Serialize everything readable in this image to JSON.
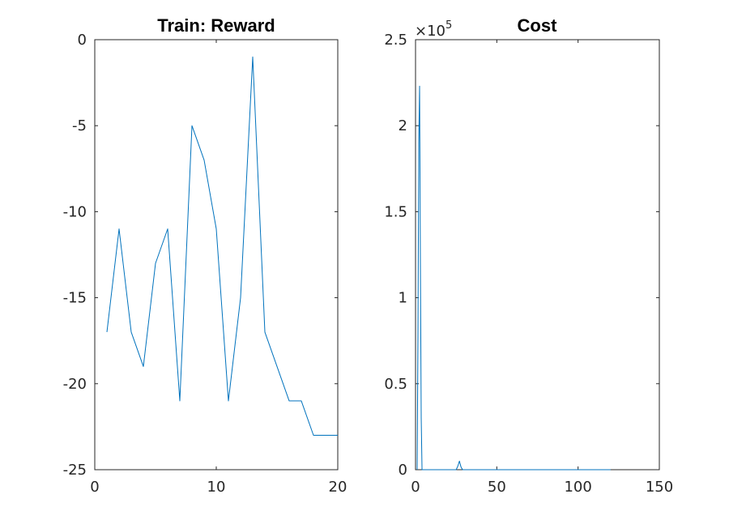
{
  "chart_data": [
    {
      "type": "line",
      "title": "Train: Reward",
      "xlabel": "",
      "ylabel": "",
      "xlim": [
        0,
        20
      ],
      "ylim": [
        -25,
        0
      ],
      "xticks": [
        0,
        10,
        20
      ],
      "xtick_labels": [
        "0",
        "10",
        "20"
      ],
      "yticks": [
        0,
        -5,
        -10,
        -15,
        -20,
        -25
      ],
      "ytick_labels": [
        "0",
        "-5",
        "-10",
        "-15",
        "-20",
        "-25"
      ],
      "grid": false,
      "color": "#0072BD",
      "series": [
        {
          "x": [
            1,
            2,
            3,
            4,
            5,
            6,
            7,
            8,
            9,
            10,
            11,
            12,
            13,
            14,
            15,
            16,
            17,
            18,
            19,
            20
          ],
          "values": [
            -17,
            -11,
            -17,
            -19,
            -13,
            -11,
            -21,
            -5,
            -7,
            -11,
            -21,
            -15,
            -1,
            -17,
            -19,
            -21,
            -21,
            -23,
            -23,
            -23
          ]
        }
      ]
    },
    {
      "type": "line",
      "title": "Cost",
      "xlabel": "",
      "ylabel": "",
      "xlim": [
        0,
        150
      ],
      "ylim": [
        0,
        250000
      ],
      "xticks": [
        0,
        50,
        100,
        150
      ],
      "xtick_labels": [
        "0",
        "50",
        "100",
        "150"
      ],
      "yticks": [
        0,
        50000,
        100000,
        150000,
        200000,
        250000
      ],
      "ytick_labels": [
        "0",
        "0.5",
        "1",
        "1.5",
        "2",
        "2.5"
      ],
      "y_exponent_label": "×10",
      "y_exponent_power": "5",
      "grid": false,
      "color": "#0072BD",
      "series": [
        {
          "x": [
            1,
            1.5,
            2,
            2.5,
            3,
            3.5,
            4,
            5,
            10,
            20,
            25,
            26,
            27,
            28,
            29,
            30,
            40,
            60,
            80,
            100,
            120
          ],
          "values": [
            0,
            80000,
            190000,
            223000,
            120000,
            30000,
            0,
            0,
            0,
            0,
            0,
            2000,
            5000,
            1500,
            0,
            0,
            0,
            0,
            0,
            0,
            0
          ]
        }
      ]
    }
  ]
}
